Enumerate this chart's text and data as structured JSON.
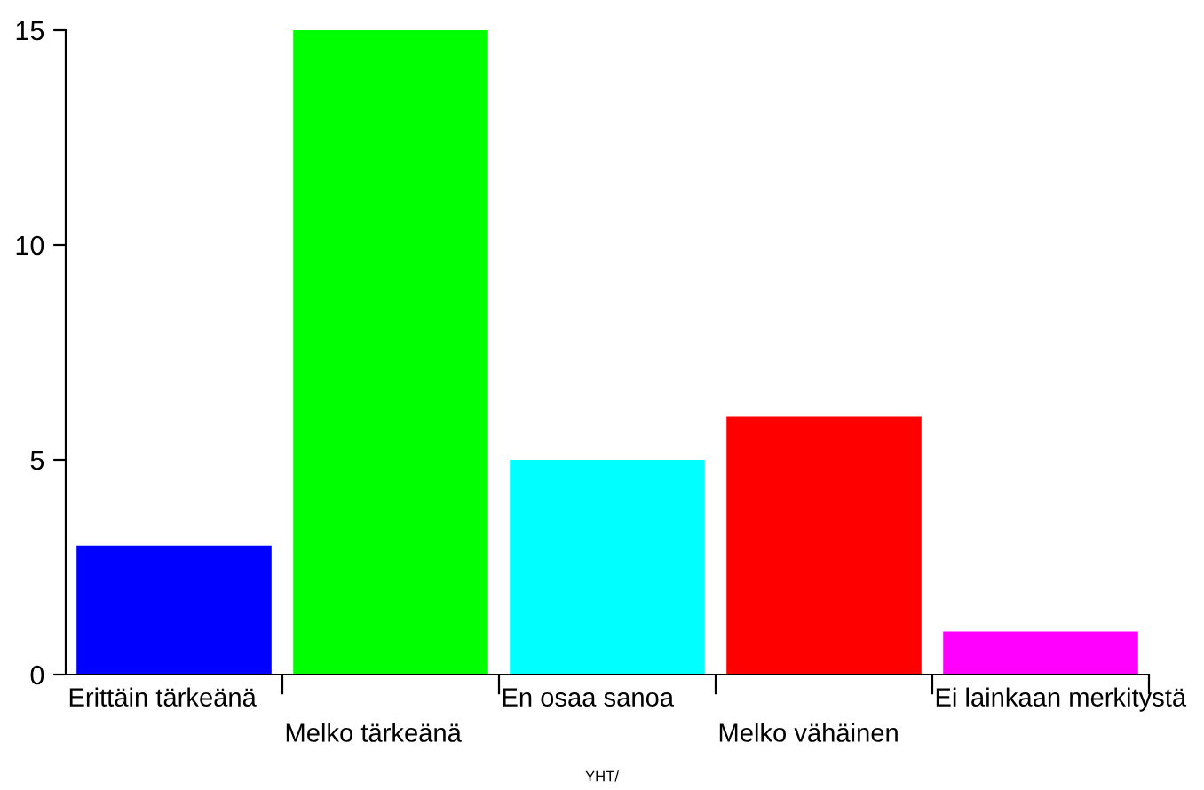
{
  "chart_data": {
    "type": "bar",
    "xlabel": "YHT/",
    "categories": [
      "Erittäin tärkeänä",
      "Melko tärkeänä",
      "En osaa sanoa",
      "Melko vähäinen",
      "Ei lainkaan merkitystä"
    ],
    "values": [
      3,
      15,
      5,
      6,
      1
    ],
    "colors": [
      "#0000ff",
      "#00ff00",
      "#00ffff",
      "#ff0000",
      "#ff00ff"
    ],
    "ylim": [
      0,
      15
    ],
    "yticks": [
      0,
      5,
      10,
      15
    ],
    "grid": false,
    "legend": false
  }
}
